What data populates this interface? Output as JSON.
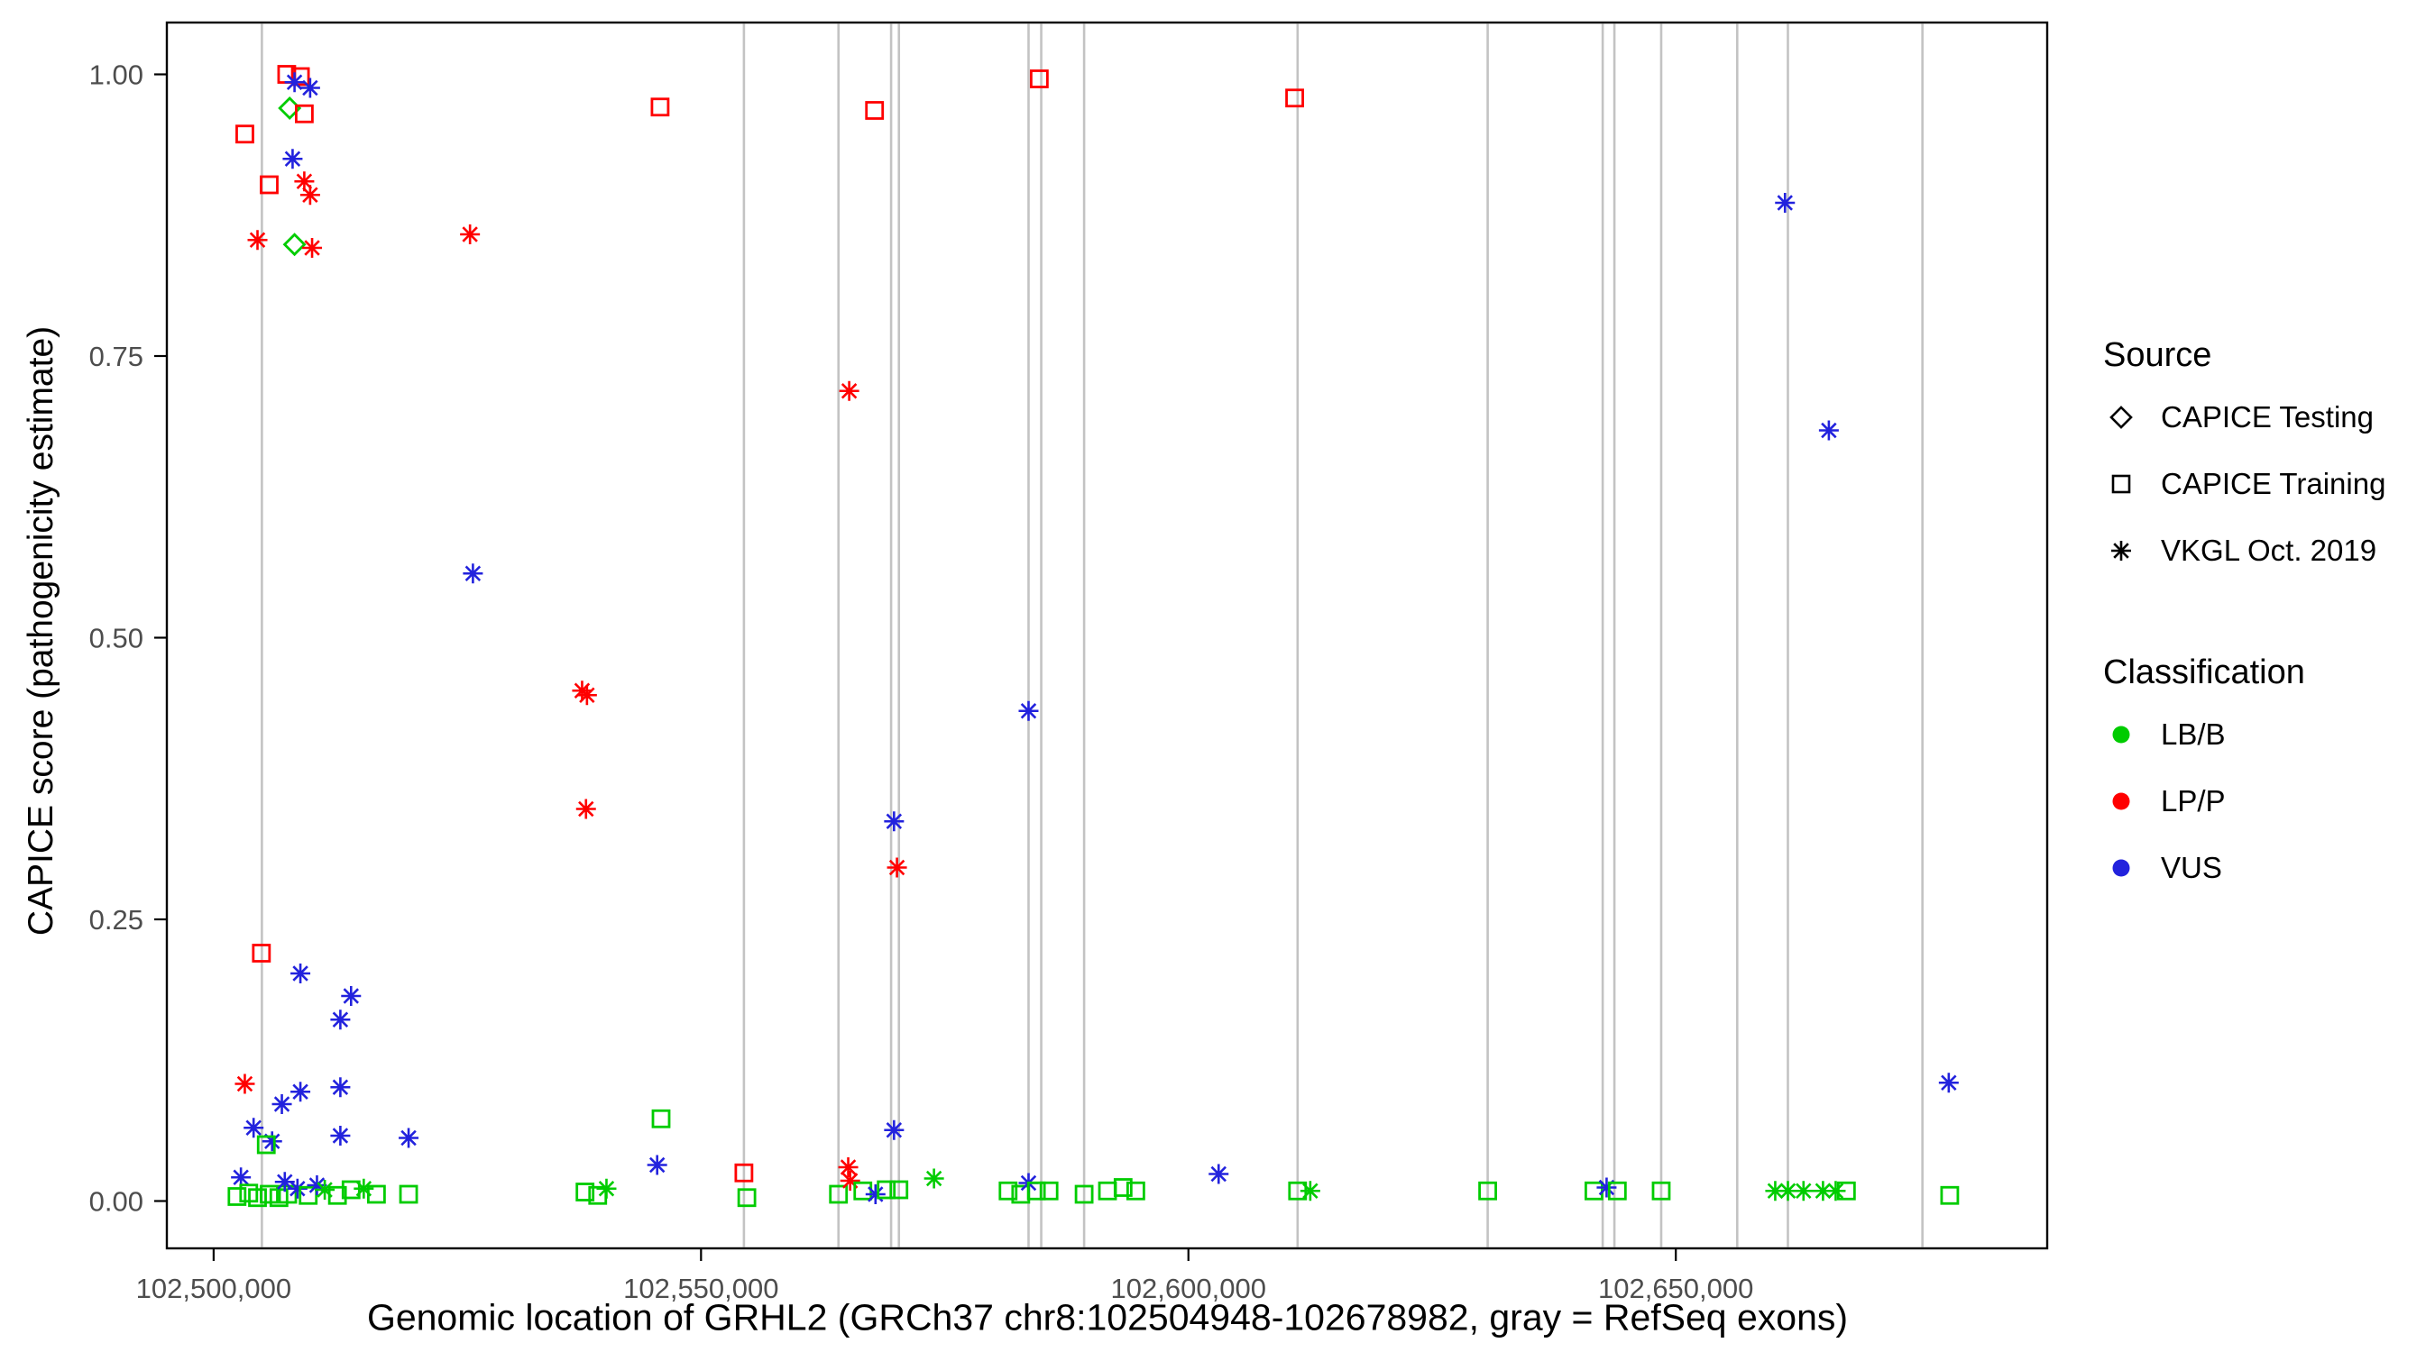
{
  "legend": {
    "source_title": "Source",
    "source_items": [
      {
        "label": "CAPICE Testing",
        "shape": "diamond"
      },
      {
        "label": "CAPICE Training",
        "shape": "square"
      },
      {
        "label": "VKGL Oct. 2019",
        "shape": "asterisk"
      }
    ],
    "classification_title": "Classification",
    "classification_items": [
      {
        "label": "LB/B",
        "color": "#00CC00"
      },
      {
        "label": "LP/P",
        "color": "#FF0000"
      },
      {
        "label": "VUS",
        "color": "#2222DD"
      }
    ]
  },
  "chart_data": {
    "type": "scatter",
    "title": "",
    "xlabel": "Genomic location of GRHL2 (GRCh37 chr8:102504948-102678982, gray = RefSeq exons)",
    "ylabel": "CAPICE score (pathogenicity estimate)",
    "xlim": [
      102495200,
      102688100
    ],
    "ylim": [
      -0.042,
      1.046
    ],
    "grid": false,
    "legend_position": "right",
    "x_ticks": [
      {
        "value": 102500000,
        "label": "102,500,000"
      },
      {
        "value": 102550000,
        "label": "102,550,000"
      },
      {
        "value": 102600000,
        "label": "102,600,000"
      },
      {
        "value": 102650000,
        "label": "102,650,000"
      }
    ],
    "y_ticks": [
      {
        "value": 0.0,
        "label": "0.00"
      },
      {
        "value": 0.25,
        "label": "0.25"
      },
      {
        "value": 0.5,
        "label": "0.50"
      },
      {
        "value": 0.75,
        "label": "0.75"
      },
      {
        "value": 1.0,
        "label": "1.00"
      }
    ],
    "colors": {
      "classification": {
        "B": "#00CC00",
        "P": "#FF0000",
        "V": "#2222DD"
      },
      "exon": "#C3C3C3",
      "panel_border": "#000000",
      "tick_label": "#4D4D4D"
    },
    "shape_codes": {
      "d": "CAPICE Testing (open diamond)",
      "s": "CAPICE Training (open square)",
      "a": "VKGL Oct. 2019 (asterisk)"
    },
    "class_codes": {
      "B": "LB/B",
      "P": "LP/P",
      "V": "VUS"
    },
    "refseq_exon_lines": [
      102504950,
      102554400,
      102564100,
      102569500,
      102570300,
      102583600,
      102584900,
      102589300,
      102611200,
      102630700,
      102642500,
      102643700,
      102648500,
      102656300,
      102661500,
      102675300
    ],
    "point_format": [
      "x_genomic_location",
      "capice_score",
      "shape_code",
      "class_code"
    ],
    "points": [
      [
        102503200,
        0.947,
        "s",
        "P"
      ],
      [
        102505700,
        0.902,
        "s",
        "P"
      ],
      [
        102507500,
        1.0,
        "s",
        "P"
      ],
      [
        102508900,
        0.998,
        "s",
        "P"
      ],
      [
        102508300,
        0.993,
        "a",
        "V"
      ],
      [
        102509900,
        0.988,
        "a",
        "V"
      ],
      [
        102507800,
        0.97,
        "d",
        "B"
      ],
      [
        102509300,
        0.965,
        "s",
        "P"
      ],
      [
        102508100,
        0.925,
        "a",
        "V"
      ],
      [
        102509300,
        0.905,
        "a",
        "P"
      ],
      [
        102509900,
        0.893,
        "a",
        "P"
      ],
      [
        102504500,
        0.853,
        "a",
        "P"
      ],
      [
        102508300,
        0.849,
        "d",
        "B"
      ],
      [
        102510100,
        0.846,
        "a",
        "P"
      ],
      [
        102526300,
        0.858,
        "a",
        "P"
      ],
      [
        102545800,
        0.971,
        "s",
        "P"
      ],
      [
        102526600,
        0.557,
        "a",
        "V"
      ],
      [
        102537800,
        0.453,
        "a",
        "P"
      ],
      [
        102538300,
        0.449,
        "a",
        "P"
      ],
      [
        102538200,
        0.348,
        "a",
        "P"
      ],
      [
        102567800,
        0.968,
        "s",
        "P"
      ],
      [
        102565200,
        0.719,
        "a",
        "P"
      ],
      [
        102569800,
        0.337,
        "a",
        "V"
      ],
      [
        102570100,
        0.296,
        "a",
        "P"
      ],
      [
        102569800,
        0.063,
        "a",
        "V"
      ],
      [
        102584700,
        0.996,
        "s",
        "P"
      ],
      [
        102583600,
        0.435,
        "a",
        "V"
      ],
      [
        102610900,
        0.979,
        "s",
        "P"
      ],
      [
        102661200,
        0.886,
        "a",
        "V"
      ],
      [
        102665700,
        0.684,
        "a",
        "V"
      ],
      [
        102678000,
        0.105,
        "a",
        "V"
      ],
      [
        102504900,
        0.22,
        "s",
        "P"
      ],
      [
        102508900,
        0.202,
        "a",
        "V"
      ],
      [
        102514100,
        0.182,
        "a",
        "V"
      ],
      [
        102513000,
        0.161,
        "a",
        "V"
      ],
      [
        102503200,
        0.104,
        "a",
        "P"
      ],
      [
        102507000,
        0.086,
        "a",
        "V"
      ],
      [
        102508900,
        0.097,
        "a",
        "V"
      ],
      [
        102513000,
        0.101,
        "a",
        "V"
      ],
      [
        102504100,
        0.065,
        "a",
        "V"
      ],
      [
        102506000,
        0.053,
        "a",
        "V"
      ],
      [
        102505400,
        0.05,
        "s",
        "B"
      ],
      [
        102513000,
        0.058,
        "a",
        "V"
      ],
      [
        102520000,
        0.056,
        "a",
        "V"
      ],
      [
        102502800,
        0.021,
        "a",
        "V"
      ],
      [
        102502400,
        0.004,
        "s",
        "B"
      ],
      [
        102503600,
        0.007,
        "s",
        "B"
      ],
      [
        102504500,
        0.003,
        "s",
        "B"
      ],
      [
        102505700,
        0.006,
        "s",
        "B"
      ],
      [
        102506700,
        0.003,
        "s",
        "B"
      ],
      [
        102507600,
        0.006,
        "s",
        "B"
      ],
      [
        102507300,
        0.017,
        "a",
        "V"
      ],
      [
        102508600,
        0.011,
        "a",
        "V"
      ],
      [
        102509700,
        0.005,
        "s",
        "B"
      ],
      [
        102510600,
        0.014,
        "a",
        "V"
      ],
      [
        102511400,
        0.01,
        "a",
        "B"
      ],
      [
        102512700,
        0.005,
        "s",
        "B"
      ],
      [
        102514100,
        0.01,
        "s",
        "B"
      ],
      [
        102515400,
        0.011,
        "a",
        "B"
      ],
      [
        102516700,
        0.006,
        "s",
        "B"
      ],
      [
        102520000,
        0.006,
        "s",
        "B"
      ],
      [
        102545900,
        0.073,
        "s",
        "B"
      ],
      [
        102545500,
        0.032,
        "a",
        "V"
      ],
      [
        102538100,
        0.008,
        "s",
        "B"
      ],
      [
        102539400,
        0.005,
        "s",
        "B"
      ],
      [
        102540300,
        0.011,
        "a",
        "B"
      ],
      [
        102554400,
        0.025,
        "s",
        "P"
      ],
      [
        102554700,
        0.003,
        "s",
        "B"
      ],
      [
        102564100,
        0.006,
        "s",
        "B"
      ],
      [
        102565100,
        0.03,
        "a",
        "P"
      ],
      [
        102565300,
        0.018,
        "a",
        "P"
      ],
      [
        102566600,
        0.009,
        "s",
        "B"
      ],
      [
        102567900,
        0.006,
        "a",
        "V"
      ],
      [
        102569000,
        0.01,
        "s",
        "B"
      ],
      [
        102570300,
        0.01,
        "s",
        "B"
      ],
      [
        102573900,
        0.02,
        "a",
        "B"
      ],
      [
        102581500,
        0.009,
        "s",
        "B"
      ],
      [
        102582800,
        0.006,
        "s",
        "B"
      ],
      [
        102583600,
        0.016,
        "a",
        "V"
      ],
      [
        102584400,
        0.009,
        "s",
        "B"
      ],
      [
        102585700,
        0.009,
        "s",
        "B"
      ],
      [
        102589300,
        0.006,
        "s",
        "B"
      ],
      [
        102591700,
        0.009,
        "s",
        "B"
      ],
      [
        102593300,
        0.012,
        "s",
        "B"
      ],
      [
        102594600,
        0.009,
        "s",
        "B"
      ],
      [
        102603100,
        0.024,
        "a",
        "V"
      ],
      [
        102611200,
        0.009,
        "s",
        "B"
      ],
      [
        102612500,
        0.009,
        "a",
        "B"
      ],
      [
        102630700,
        0.009,
        "s",
        "B"
      ],
      [
        102641600,
        0.009,
        "s",
        "B"
      ],
      [
        102642900,
        0.012,
        "a",
        "V"
      ],
      [
        102644000,
        0.009,
        "s",
        "B"
      ],
      [
        102648500,
        0.009,
        "s",
        "B"
      ],
      [
        102660200,
        0.009,
        "a",
        "B"
      ],
      [
        102661500,
        0.009,
        "a",
        "B"
      ],
      [
        102663100,
        0.009,
        "a",
        "B"
      ],
      [
        102665100,
        0.009,
        "a",
        "B"
      ],
      [
        102666400,
        0.009,
        "a",
        "B"
      ],
      [
        102667500,
        0.009,
        "s",
        "B"
      ],
      [
        102678100,
        0.005,
        "s",
        "B"
      ]
    ]
  }
}
